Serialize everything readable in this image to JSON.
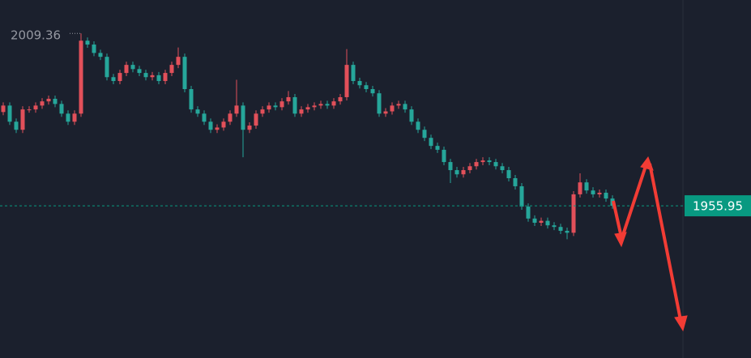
{
  "chart_data": {
    "type": "candlestick",
    "ylim": [
      1908.8,
      2019.7
    ],
    "up_color": "#e2505a",
    "down_color": "#26a69a",
    "high_label": "2009.36",
    "last_price_label": "1955.95",
    "last_price_color": "#089981",
    "open": [
      1985.0,
      1987.0,
      1982.0,
      1979.5,
      1985.8,
      1985.8,
      1987.0,
      1988.3,
      1989.1,
      1987.5,
      1984.5,
      1982.0,
      1984.5,
      2007.1,
      2005.9,
      2003.3,
      2002.1,
      1995.8,
      1994.6,
      1997.1,
      1999.6,
      1998.3,
      1997.1,
      1995.8,
      1996.4,
      1994.6,
      1997.1,
      1999.6,
      2002.1,
      1992.1,
      1985.8,
      1984.5,
      1982.0,
      1979.5,
      1980.2,
      1982.0,
      1984.5,
      1987.0,
      1979.5,
      1980.8,
      1984.5,
      1985.8,
      1987.0,
      1986.5,
      1988.3,
      1989.6,
      1984.5,
      1985.8,
      1986.5,
      1987.0,
      1987.5,
      1987.0,
      1988.3,
      1989.6,
      1999.6,
      1994.6,
      1993.3,
      1992.1,
      1990.8,
      1984.5,
      1985.2,
      1987.0,
      1987.5,
      1985.8,
      1982.0,
      1979.5,
      1977.0,
      1974.5,
      1973.3,
      1969.5,
      1967.0,
      1965.7,
      1967.0,
      1968.2,
      1969.5,
      1970.0,
      1969.5,
      1968.2,
      1967.0,
      1964.5,
      1962.0,
      1955.7,
      1952.0,
      1950.7,
      1951.3,
      1949.9,
      1949.4,
      1948.2,
      1947.6,
      1959.5,
      1963.2,
      1960.7,
      1959.5,
      1960.0,
      1958.2
    ],
    "high": [
      1988.0,
      1988.0,
      1983.0,
      1986.8,
      1986.8,
      1988.0,
      1989.3,
      1990.1,
      1990.1,
      1988.5,
      1985.5,
      1985.5,
      2009.36,
      2008.1,
      2006.9,
      2004.3,
      2003.1,
      1996.8,
      1998.1,
      2000.6,
      2000.6,
      1999.3,
      1998.1,
      1997.4,
      1997.4,
      1998.1,
      2000.6,
      2005.0,
      2003.1,
      1993.1,
      1986.8,
      1985.5,
      1983.0,
      1981.2,
      1983.0,
      1985.5,
      1995.0,
      1988.0,
      1981.8,
      1985.5,
      1986.8,
      1988.0,
      1988.0,
      1989.3,
      1991.5,
      1990.6,
      1986.8,
      1987.5,
      1988.0,
      1988.5,
      1988.5,
      1989.3,
      1990.6,
      2004.5,
      2000.6,
      1995.6,
      1994.3,
      1993.1,
      1991.8,
      1986.2,
      1988.0,
      1988.5,
      1988.5,
      1986.8,
      1983.0,
      1980.5,
      1978.0,
      1975.5,
      1974.3,
      1970.5,
      1968.0,
      1968.0,
      1969.2,
      1970.5,
      1971.0,
      1971.0,
      1970.5,
      1969.2,
      1968.0,
      1965.5,
      1963.0,
      1956.7,
      1953.0,
      1952.3,
      1952.3,
      1950.9,
      1950.4,
      1949.2,
      1960.5,
      1966.0,
      1964.2,
      1961.7,
      1961.0,
      1961.0,
      1959.2
    ],
    "low": [
      1984.0,
      1981.0,
      1978.5,
      1978.5,
      1984.8,
      1984.8,
      1986.0,
      1987.3,
      1986.5,
      1983.5,
      1981.0,
      1981.0,
      1983.5,
      2004.9,
      2002.3,
      2001.1,
      1994.8,
      1993.6,
      1993.6,
      1996.1,
      1997.3,
      1996.1,
      1994.8,
      1994.8,
      1993.6,
      1993.6,
      1996.1,
      1998.6,
      1991.1,
      1984.8,
      1983.5,
      1981.0,
      1978.5,
      1978.5,
      1979.2,
      1981.0,
      1983.5,
      1971.0,
      1978.5,
      1979.8,
      1983.5,
      1984.8,
      1985.5,
      1985.5,
      1987.3,
      1983.5,
      1983.5,
      1984.8,
      1985.5,
      1986.0,
      1986.0,
      1986.0,
      1987.3,
      1988.6,
      1993.6,
      1992.3,
      1991.1,
      1989.8,
      1983.5,
      1983.5,
      1984.2,
      1986.0,
      1984.8,
      1981.0,
      1978.5,
      1976.0,
      1973.5,
      1972.3,
      1968.5,
      1963.0,
      1964.7,
      1964.7,
      1966.0,
      1967.2,
      1968.5,
      1968.5,
      1967.2,
      1966.0,
      1963.5,
      1961.0,
      1954.7,
      1951.0,
      1949.7,
      1949.7,
      1948.9,
      1948.4,
      1947.2,
      1945.6,
      1946.6,
      1958.5,
      1959.7,
      1958.5,
      1958.5,
      1957.2,
      1955.0
    ],
    "close": [
      1987.0,
      1982.0,
      1979.5,
      1985.8,
      1985.8,
      1987.0,
      1988.3,
      1989.1,
      1987.5,
      1984.5,
      1982.0,
      1984.5,
      2007.1,
      2005.9,
      2003.3,
      2002.1,
      1995.8,
      1994.6,
      1997.1,
      1999.6,
      1998.3,
      1997.1,
      1995.8,
      1996.4,
      1994.6,
      1997.1,
      1999.6,
      2002.1,
      1992.1,
      1985.8,
      1984.5,
      1982.0,
      1979.5,
      1980.2,
      1982.0,
      1984.5,
      1987.0,
      1979.5,
      1980.8,
      1984.5,
      1985.8,
      1987.0,
      1986.5,
      1988.3,
      1989.6,
      1984.5,
      1985.8,
      1986.5,
      1987.0,
      1987.5,
      1987.0,
      1988.3,
      1989.6,
      1999.6,
      1994.6,
      1993.3,
      1992.1,
      1990.8,
      1984.5,
      1985.2,
      1987.0,
      1987.5,
      1985.8,
      1982.0,
      1979.5,
      1977.0,
      1974.5,
      1973.3,
      1969.5,
      1967.0,
      1965.7,
      1967.0,
      1968.2,
      1969.5,
      1970.0,
      1969.5,
      1968.2,
      1967.0,
      1964.5,
      1962.0,
      1955.7,
      1952.0,
      1950.7,
      1951.3,
      1949.9,
      1949.4,
      1948.2,
      1947.6,
      1959.5,
      1963.2,
      1960.7,
      1959.5,
      1960.0,
      1958.2,
      1955.95
    ]
  }
}
